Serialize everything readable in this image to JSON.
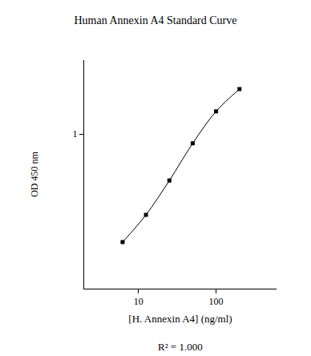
{
  "chart_data": {
    "type": "line",
    "title": "Human Annexin A4 Standard Curve",
    "x_label": "[H. Annexin A4] (ng/ml)",
    "y_label": "OD 450 nm",
    "annotation": "R² = 1.000",
    "x": [
      6.25,
      12.5,
      25,
      50,
      100,
      200
    ],
    "values": [
      0.2,
      0.3,
      0.5,
      0.87,
      1.4,
      1.95
    ],
    "color": "#000000",
    "marker": "square",
    "line_style": "solid",
    "log": true,
    "grid": false,
    "xlim": [
      2,
      600
    ],
    "xticks": [
      10,
      100
    ],
    "ylim": [
      0.1,
      3
    ],
    "yticks": [
      1
    ]
  }
}
